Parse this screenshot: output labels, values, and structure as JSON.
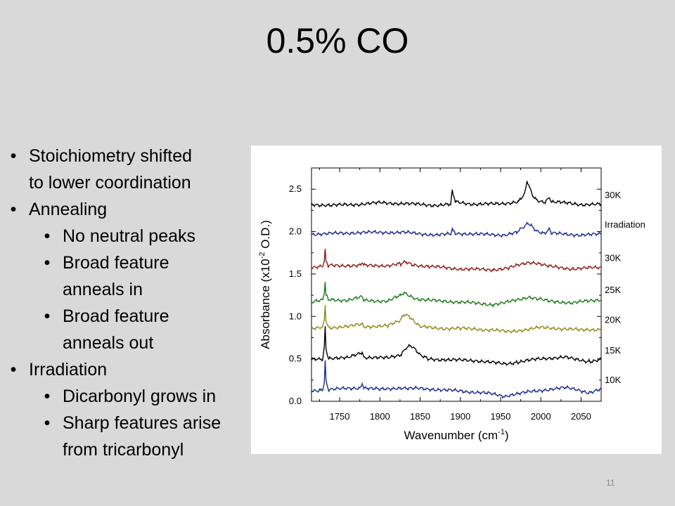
{
  "slide": {
    "title": "0.5% CO",
    "page_number": "11"
  },
  "bullets": [
    {
      "level": 1,
      "lines": [
        "Stoichiometry shifted",
        "to lower coordination"
      ]
    },
    {
      "level": 1,
      "lines": [
        "Annealing"
      ]
    },
    {
      "level": 2,
      "lines": [
        "No neutral peaks"
      ]
    },
    {
      "level": 2,
      "lines": [
        "Broad feature",
        "anneals in"
      ]
    },
    {
      "level": 2,
      "lines": [
        "Broad feature",
        "anneals out"
      ]
    },
    {
      "level": 1,
      "lines": [
        "Irradiation"
      ]
    },
    {
      "level": 2,
      "lines": [
        "Dicarbonyl grows in"
      ]
    },
    {
      "level": 2,
      "lines": [
        "Sharp features arise",
        "from tricarbonyl"
      ]
    }
  ],
  "chart_data": {
    "type": "line",
    "xlabel_main": "Wavenumber (cm",
    "xlabel_sup": "-1",
    "xlabel_end": ")",
    "ylabel_main": "Absorbance (x10",
    "ylabel_sup": "-2",
    "ylabel_end": " O.D.)",
    "xlim": [
      1715,
      2075
    ],
    "ylim": [
      0.0,
      2.75
    ],
    "x_ticks": [
      1750,
      1800,
      1850,
      1900,
      1950,
      2000,
      2050
    ],
    "y_ticks": [
      0.0,
      0.5,
      1.0,
      1.5,
      2.0,
      2.5
    ],
    "y_tick_labels": [
      "0.0",
      "0.5",
      "1.0",
      "1.5",
      "2.0",
      "2.5"
    ],
    "grid": false,
    "series": [
      {
        "name": "10K",
        "color": "#1a2b8c",
        "offset": 0.12,
        "points": [
          [
            1715,
            0.0
          ],
          [
            1725,
            0.01
          ],
          [
            1729,
            0.02
          ],
          [
            1731,
            0.12
          ],
          [
            1732,
            0.36
          ],
          [
            1733,
            0.12
          ],
          [
            1736,
            0.02
          ],
          [
            1760,
            0.03
          ],
          [
            1776,
            0.04
          ],
          [
            1778,
            0.1
          ],
          [
            1780,
            0.04
          ],
          [
            1800,
            0.02
          ],
          [
            1828,
            0.04
          ],
          [
            1835,
            0.03
          ],
          [
            1850,
            0.03
          ],
          [
            1870,
            0.02
          ],
          [
            1900,
            0.0
          ],
          [
            1930,
            -0.02
          ],
          [
            1955,
            -0.06
          ],
          [
            1965,
            -0.04
          ],
          [
            1985,
            -0.01
          ],
          [
            2010,
            0.02
          ],
          [
            2030,
            0.04
          ],
          [
            2045,
            0.02
          ],
          [
            2060,
            -0.02
          ],
          [
            2075,
            0.02
          ]
        ]
      },
      {
        "name": "15K",
        "color": "#000000",
        "offset": 0.49,
        "points": [
          [
            1715,
            0.0
          ],
          [
            1729,
            0.01
          ],
          [
            1731,
            0.16
          ],
          [
            1732,
            0.38
          ],
          [
            1733,
            0.14
          ],
          [
            1736,
            0.02
          ],
          [
            1760,
            0.02
          ],
          [
            1778,
            0.09
          ],
          [
            1780,
            0.03
          ],
          [
            1810,
            0.02
          ],
          [
            1826,
            0.06
          ],
          [
            1832,
            0.14
          ],
          [
            1838,
            0.17
          ],
          [
            1844,
            0.12
          ],
          [
            1850,
            0.05
          ],
          [
            1860,
            0.01
          ],
          [
            1880,
            0.0
          ],
          [
            1920,
            -0.01
          ],
          [
            1955,
            -0.05
          ],
          [
            1970,
            -0.03
          ],
          [
            1990,
            0.0
          ],
          [
            2010,
            0.02
          ],
          [
            2030,
            0.03
          ],
          [
            2045,
            0.0
          ],
          [
            2060,
            -0.02
          ],
          [
            2075,
            0.0
          ]
        ]
      },
      {
        "name": "20K",
        "color": "#8c8c1a",
        "offset": 0.85,
        "points": [
          [
            1715,
            0.0
          ],
          [
            1729,
            0.02
          ],
          [
            1731,
            0.12
          ],
          [
            1732,
            0.28
          ],
          [
            1733,
            0.1
          ],
          [
            1736,
            0.02
          ],
          [
            1760,
            0.03
          ],
          [
            1778,
            0.06
          ],
          [
            1780,
            0.03
          ],
          [
            1810,
            0.04
          ],
          [
            1825,
            0.1
          ],
          [
            1830,
            0.18
          ],
          [
            1836,
            0.16
          ],
          [
            1842,
            0.1
          ],
          [
            1850,
            0.03
          ],
          [
            1870,
            0.01
          ],
          [
            1900,
            0.01
          ],
          [
            1940,
            -0.01
          ],
          [
            1960,
            -0.03
          ],
          [
            1985,
            0.0
          ],
          [
            2000,
            0.02
          ],
          [
            2020,
            0.01
          ],
          [
            2050,
            -0.01
          ],
          [
            2075,
            0.0
          ]
        ]
      },
      {
        "name": "25K",
        "color": "#1a7a1a",
        "offset": 1.17,
        "points": [
          [
            1715,
            0.0
          ],
          [
            1729,
            0.02
          ],
          [
            1731,
            0.12
          ],
          [
            1732,
            0.23
          ],
          [
            1733,
            0.08
          ],
          [
            1736,
            0.03
          ],
          [
            1760,
            0.02
          ],
          [
            1778,
            0.06
          ],
          [
            1780,
            0.02
          ],
          [
            1810,
            0.01
          ],
          [
            1826,
            0.08
          ],
          [
            1830,
            0.11
          ],
          [
            1836,
            0.08
          ],
          [
            1845,
            0.04
          ],
          [
            1860,
            0.02
          ],
          [
            1900,
            0.0
          ],
          [
            1940,
            -0.03
          ],
          [
            1955,
            -0.01
          ],
          [
            1985,
            0.06
          ],
          [
            1995,
            0.04
          ],
          [
            2010,
            0.01
          ],
          [
            2040,
            -0.01
          ],
          [
            2075,
            0.03
          ]
        ]
      },
      {
        "name": "30K",
        "color": "#8c1a1a",
        "offset": 1.58,
        "points": [
          [
            1715,
            0.0
          ],
          [
            1729,
            0.01
          ],
          [
            1731,
            0.08
          ],
          [
            1732,
            0.2
          ],
          [
            1733,
            0.06
          ],
          [
            1736,
            0.02
          ],
          [
            1760,
            0.02
          ],
          [
            1776,
            0.02
          ],
          [
            1778,
            0.06
          ],
          [
            1780,
            0.02
          ],
          [
            1810,
            0.02
          ],
          [
            1826,
            0.04
          ],
          [
            1832,
            0.06
          ],
          [
            1840,
            0.03
          ],
          [
            1860,
            0.01
          ],
          [
            1900,
            -0.02
          ],
          [
            1940,
            -0.03
          ],
          [
            1960,
            -0.01
          ],
          [
            1985,
            0.06
          ],
          [
            1995,
            0.05
          ],
          [
            2010,
            0.01
          ],
          [
            2040,
            -0.02
          ],
          [
            2075,
            0.0
          ]
        ]
      },
      {
        "name": "Irradiation",
        "color": "#1a2b8c",
        "offset": 1.97,
        "points": [
          [
            1715,
            0.0
          ],
          [
            1750,
            0.01
          ],
          [
            1780,
            0.02
          ],
          [
            1830,
            0.02
          ],
          [
            1870,
            -0.01
          ],
          [
            1888,
            0.0
          ],
          [
            1890,
            0.06
          ],
          [
            1891,
            0.04
          ],
          [
            1894,
            0.01
          ],
          [
            1920,
            0.0
          ],
          [
            1955,
            -0.01
          ],
          [
            1970,
            0.02
          ],
          [
            1980,
            0.09
          ],
          [
            1984,
            0.13
          ],
          [
            1988,
            0.1
          ],
          [
            1995,
            0.04
          ],
          [
            2005,
            0.01
          ],
          [
            2011,
            0.06
          ],
          [
            2013,
            0.01
          ],
          [
            2030,
            0.0
          ],
          [
            2050,
            -0.01
          ],
          [
            2075,
            0.0
          ]
        ]
      },
      {
        "name": "30K",
        "color": "#000000",
        "offset": 2.32,
        "points": [
          [
            1715,
            0.0
          ],
          [
            1740,
            -0.01
          ],
          [
            1770,
            0.0
          ],
          [
            1800,
            0.02
          ],
          [
            1830,
            0.01
          ],
          [
            1870,
            -0.01
          ],
          [
            1888,
            0.0
          ],
          [
            1890,
            0.16
          ],
          [
            1891,
            0.12
          ],
          [
            1894,
            0.03
          ],
          [
            1920,
            0.0
          ],
          [
            1950,
            0.01
          ],
          [
            1972,
            0.03
          ],
          [
            1980,
            0.12
          ],
          [
            1983,
            0.28
          ],
          [
            1985,
            0.22
          ],
          [
            1990,
            0.1
          ],
          [
            1995,
            0.05
          ],
          [
            2005,
            0.03
          ],
          [
            2011,
            0.09
          ],
          [
            2013,
            0.03
          ],
          [
            2030,
            0.02
          ],
          [
            2050,
            0.0
          ],
          [
            2075,
            0.0
          ]
        ]
      }
    ]
  }
}
